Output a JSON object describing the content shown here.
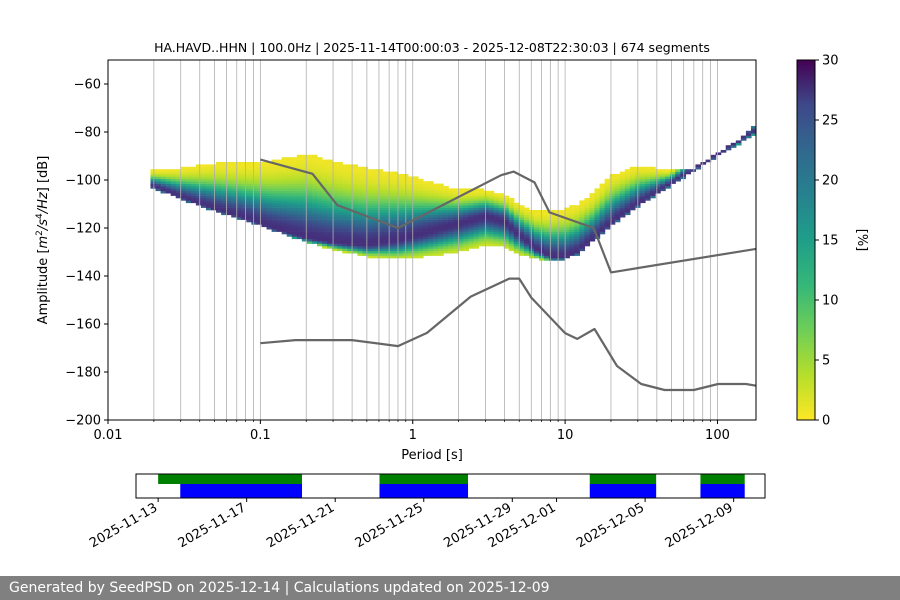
{
  "chart_data": [
    {
      "type": "heatmap",
      "title": "HA.HAVD..HHN | 100.0Hz | 2025-11-14T00:00:03 - 2025-12-08T22:30:03 | 674 segments",
      "xlabel": "Period [s]",
      "ylabel": "Amplitude [m²/s⁴/Hz] [dB]",
      "xscale": "log",
      "xlim": [
        0.01,
        179
      ],
      "ylim": [
        -200,
        -50
      ],
      "x_ticks": [
        0.01,
        0.1,
        1,
        10,
        100
      ],
      "x_tick_labels": [
        "0.01",
        "0.1",
        "1",
        "10",
        "100"
      ],
      "y_ticks": [
        -200,
        -180,
        -160,
        -140,
        -120,
        -100,
        -80,
        -60
      ],
      "y_tick_labels": [
        "−200",
        "−180",
        "−160",
        "−140",
        "−120",
        "−100",
        "−80",
        "−60"
      ],
      "grid": "vertical lines at log-decade minor ticks",
      "colormap": "viridis_r",
      "colorbar": {
        "label": "[%]",
        "min": 0,
        "max": 30,
        "ticks": [
          0,
          5,
          10,
          15,
          20,
          25,
          30
        ],
        "tick_labels": [
          "0",
          "5",
          "10",
          "15",
          "20",
          "25",
          "30"
        ]
      },
      "noise_models": [
        {
          "label": "NHNM",
          "color": "#666666",
          "points": [
            [
              0.1,
              -91.5
            ],
            [
              0.22,
              -97.4
            ],
            [
              0.32,
              -110.5
            ],
            [
              0.8,
              -120
            ],
            [
              3.8,
              -98
            ],
            [
              4.6,
              -96.5
            ],
            [
              6.3,
              -101
            ],
            [
              7.9,
              -113.5
            ],
            [
              15.4,
              -120
            ],
            [
              20,
              -138.5
            ],
            [
              179,
              -128.7
            ]
          ]
        },
        {
          "label": "NLNM",
          "color": "#666666",
          "points": [
            [
              0.1,
              -168
            ],
            [
              0.17,
              -166.7
            ],
            [
              0.4,
              -166.7
            ],
            [
              0.8,
              -169.2
            ],
            [
              1.24,
              -163.7
            ],
            [
              2.4,
              -148.6
            ],
            [
              4.3,
              -141.1
            ],
            [
              5.0,
              -141.1
            ],
            [
              6.0,
              -149
            ],
            [
              10,
              -163.8
            ],
            [
              12,
              -166.2
            ],
            [
              15.6,
              -162.1
            ],
            [
              21.9,
              -177.5
            ],
            [
              31.6,
              -185
            ],
            [
              45,
              -187.5
            ],
            [
              70,
              -187.5
            ],
            [
              101,
              -185
            ],
            [
              154,
              -185
            ],
            [
              179,
              -185.7
            ]
          ]
        }
      ],
      "psd_density": {
        "mode_curve": [
          [
            0.019,
            -102
          ],
          [
            0.03,
            -107
          ],
          [
            0.05,
            -112
          ],
          [
            0.08,
            -116
          ],
          [
            0.12,
            -120
          ],
          [
            0.2,
            -124
          ],
          [
            0.3,
            -126
          ],
          [
            0.5,
            -127
          ],
          [
            0.8,
            -125
          ],
          [
            1.2,
            -122
          ],
          [
            2,
            -118
          ],
          [
            3,
            -115
          ],
          [
            4,
            -117
          ],
          [
            5,
            -123
          ],
          [
            6.5,
            -129
          ],
          [
            8,
            -132
          ],
          [
            10,
            -132
          ],
          [
            12,
            -130
          ],
          [
            15,
            -125
          ],
          [
            20,
            -118
          ],
          [
            30,
            -110
          ],
          [
            50,
            -101
          ],
          [
            80,
            -93
          ],
          [
            120,
            -86
          ],
          [
            179,
            -79
          ]
        ],
        "min_curve": [
          [
            0.019,
            -103
          ],
          [
            0.03,
            -108
          ],
          [
            0.05,
            -113
          ],
          [
            0.08,
            -117
          ],
          [
            0.12,
            -121
          ],
          [
            0.2,
            -126
          ],
          [
            0.3,
            -129
          ],
          [
            0.5,
            -132
          ],
          [
            0.8,
            -133
          ],
          [
            1.2,
            -132
          ],
          [
            2,
            -130
          ],
          [
            3,
            -127
          ],
          [
            4,
            -128
          ],
          [
            5,
            -131
          ],
          [
            6.5,
            -133
          ],
          [
            8,
            -134
          ],
          [
            10,
            -133
          ],
          [
            12,
            -131
          ],
          [
            15,
            -126
          ],
          [
            20,
            -119
          ],
          [
            30,
            -111
          ],
          [
            50,
            -102
          ],
          [
            80,
            -94
          ],
          [
            120,
            -87
          ],
          [
            179,
            -81
          ]
        ],
        "max_curve": [
          [
            0.019,
            -96
          ],
          [
            0.03,
            -95
          ],
          [
            0.05,
            -93
          ],
          [
            0.08,
            -93
          ],
          [
            0.12,
            -92
          ],
          [
            0.2,
            -89
          ],
          [
            0.3,
            -92
          ],
          [
            0.5,
            -95
          ],
          [
            0.8,
            -97
          ],
          [
            1.2,
            -100
          ],
          [
            2,
            -104
          ],
          [
            3,
            -104
          ],
          [
            4,
            -106
          ],
          [
            5,
            -110
          ],
          [
            6.5,
            -113
          ],
          [
            8,
            -113
          ],
          [
            10,
            -112
          ],
          [
            12,
            -110
          ],
          [
            15,
            -106
          ],
          [
            20,
            -98
          ],
          [
            30,
            -94
          ],
          [
            50,
            -96
          ],
          [
            80,
            -96
          ],
          [
            120,
            -88
          ],
          [
            179,
            -76
          ]
        ]
      }
    },
    {
      "type": "timeline",
      "x_ticks": [
        "2025-11-13",
        "2025-11-17",
        "2025-11-21",
        "2025-11-25",
        "2025-11-29",
        "2025-12-01",
        "2025-12-05",
        "2025-12-09"
      ],
      "xlim": [
        "2025-11-12T00:00",
        "2025-12-10T10:00"
      ],
      "green_segments": [
        [
          "2025-11-13T00:00",
          "2025-11-19T12:00"
        ],
        [
          "2025-11-23T00:00",
          "2025-11-27T00:00"
        ],
        [
          "2025-12-02T12:00",
          "2025-12-05T12:00"
        ],
        [
          "2025-12-07T12:00",
          "2025-12-09T12:00"
        ]
      ],
      "blue_segments": [
        [
          "2025-11-14T00:00",
          "2025-11-19T12:00"
        ],
        [
          "2025-11-23T00:00",
          "2025-11-27T00:00"
        ],
        [
          "2025-12-02T12:00",
          "2025-12-05T12:00"
        ],
        [
          "2025-12-07T12:00",
          "2025-12-09T12:00"
        ]
      ],
      "colors": {
        "green": "#008000",
        "blue": "#0000ff"
      }
    }
  ],
  "footer": {
    "text": "Generated by SeedPSD on 2025-12-14 | Calculations updated on 2025-12-09"
  }
}
